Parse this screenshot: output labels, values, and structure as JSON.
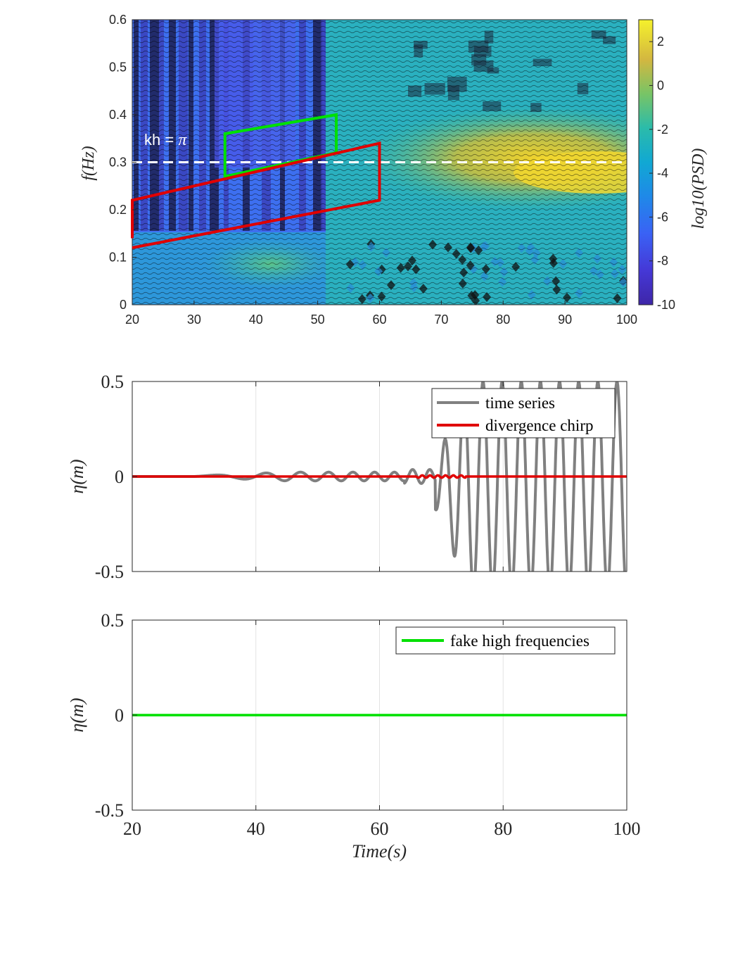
{
  "chart_data": [
    {
      "type": "heatmap",
      "title": "",
      "xlabel": "",
      "ylabel": "f(Hz)",
      "xlim": [
        20,
        100
      ],
      "ylim": [
        0,
        0.6
      ],
      "xticks": [
        "20",
        "30",
        "40",
        "50",
        "60",
        "70",
        "80",
        "90",
        "100"
      ],
      "yticks": [
        "0",
        "0.1",
        "0.2",
        "0.3",
        "0.4",
        "0.5",
        "0.6"
      ],
      "colorbar": {
        "label": "log10(PSD)",
        "range": [
          -10,
          3
        ],
        "ticks": [
          "2",
          "0",
          "-2",
          "-4",
          "-6",
          "-8",
          "-10"
        ],
        "colormap": "parula"
      },
      "annotation": {
        "text": "kh = ",
        "symbol": "π",
        "at": [
          22,
          0.325
        ]
      },
      "reference_line": {
        "name": "kh = π",
        "y": 0.3,
        "style": "dashed",
        "color": "#ffffff"
      },
      "regions": [
        {
          "name": "fake high frequencies",
          "color": "#00e000",
          "points": [
            [
              35,
              0.27
            ],
            [
              35,
              0.36
            ],
            [
              53,
              0.4
            ],
            [
              53,
              0.32
            ]
          ]
        },
        {
          "name": "divergence chirp",
          "color": "#e00000",
          "points": [
            [
              20,
              0.14
            ],
            [
              20,
              0.22
            ],
            [
              60,
              0.34
            ],
            [
              60,
              0.22
            ],
            [
              20,
              0.12
            ]
          ]
        }
      ]
    },
    {
      "type": "line",
      "xlabel": "",
      "ylabel": "η(m)",
      "xlim": [
        20,
        100
      ],
      "ylim": [
        -0.5,
        0.5
      ],
      "yticks": [
        "0.5",
        "0",
        "-0.5"
      ],
      "grid": "x",
      "legend": {
        "placement": "top-right"
      },
      "series": [
        {
          "name": "time series",
          "color": "#808080"
        },
        {
          "name": "divergence chirp",
          "color": "#e00000"
        }
      ]
    },
    {
      "type": "line",
      "xlabel": "Time(s)",
      "ylabel": "η(m)",
      "xlim": [
        20,
        100
      ],
      "ylim": [
        -0.5,
        0.5
      ],
      "xticks": [
        "20",
        "40",
        "60",
        "80",
        "100"
      ],
      "yticks": [
        "0.5",
        "0",
        "-0.5"
      ],
      "grid": "x",
      "legend": {
        "placement": "top-right"
      },
      "series": [
        {
          "name": "fake high frequencies",
          "color": "#00e000",
          "constant_value": 0
        }
      ]
    }
  ]
}
